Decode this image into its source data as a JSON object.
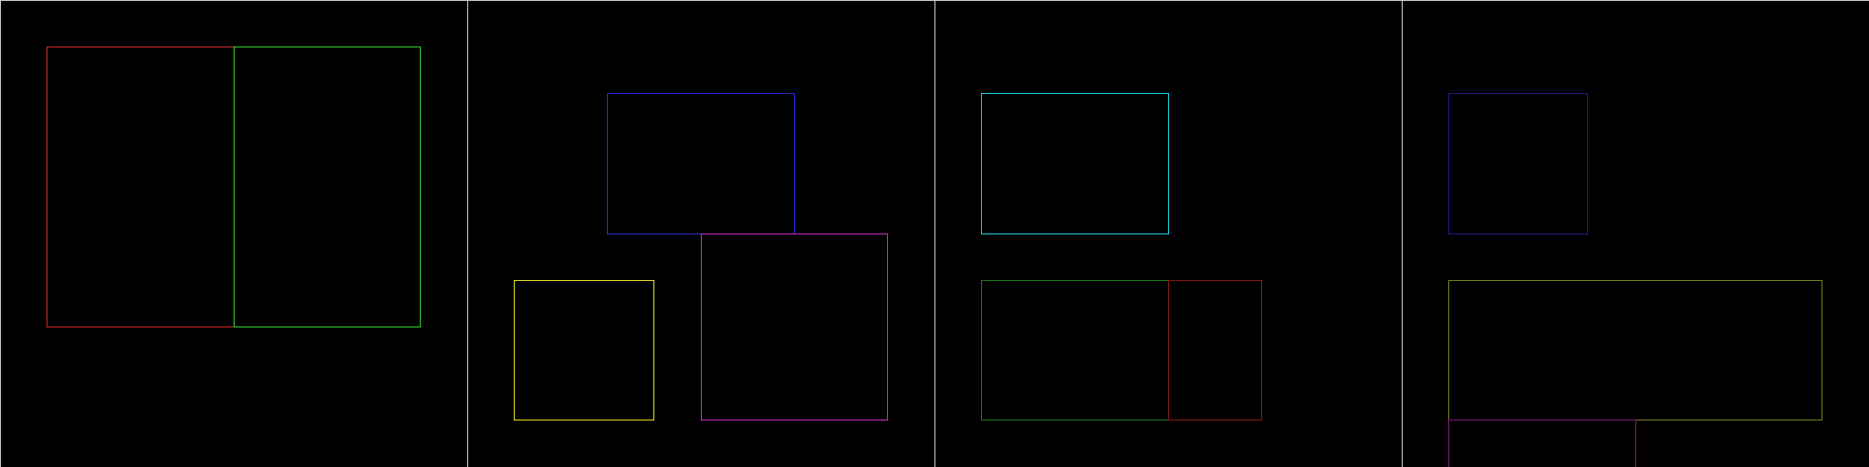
{
  "canvas": {
    "background": "#000000",
    "divider_color": "#d0d0d0"
  },
  "panels": [
    {
      "name": "panel-1",
      "boxes": [
        {
          "name": "red-rectangle",
          "color": "#d22a2a"
        },
        {
          "name": "green-rectangle",
          "color": "#33d633"
        }
      ]
    },
    {
      "name": "panel-2",
      "boxes": [
        {
          "name": "blue-rectangle",
          "color": "#2a2ad0"
        },
        {
          "name": "yellow-rectangle",
          "color": "#e6e62a"
        },
        {
          "name": "magenta-rectangle",
          "color": "#d22ad2"
        }
      ]
    },
    {
      "name": "panel-3",
      "boxes": [
        {
          "name": "cyan-rectangle",
          "color": "#22d6e6"
        },
        {
          "name": "dark-green-rectangle",
          "color": "#1f7a1f"
        },
        {
          "name": "dark-red-rectangle",
          "color": "#8a1a1a"
        }
      ]
    },
    {
      "name": "panel-4",
      "boxes": [
        {
          "name": "navy-rectangle",
          "color": "#1a1a8a"
        },
        {
          "name": "olive-rectangle",
          "color": "#7f7f1a"
        },
        {
          "name": "purple-rectangle",
          "color": "#7f1a7f"
        }
      ]
    }
  ]
}
